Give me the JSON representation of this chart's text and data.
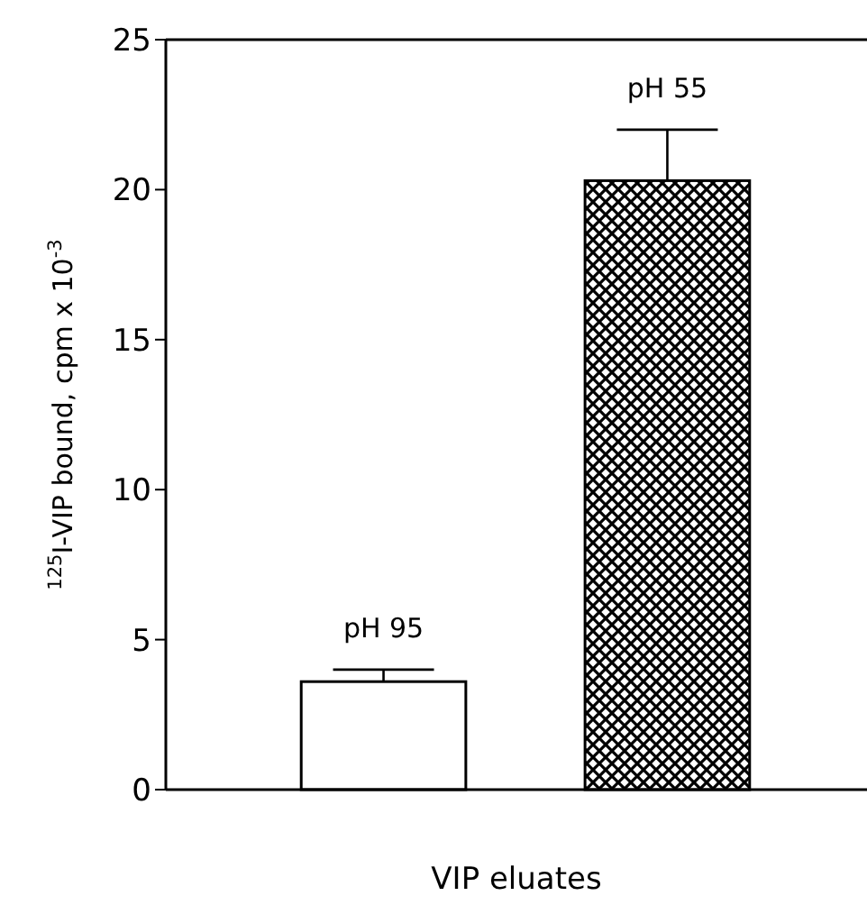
{
  "chart_data": {
    "type": "bar",
    "xlabel": "VIP eluates",
    "ylabel": "$^{125}$I-VIP bound, cpm x 10$^{-3}$",
    "categories": [
      null,
      null
    ],
    "values": [
      3.6,
      20.3
    ],
    "errors": [
      0.4,
      1.7
    ],
    "colors": [
      "#ffffff",
      "#000000"
    ],
    "annotations": [
      "pH 95",
      "pH 55"
    ],
    "ylim": [
      0,
      25
    ],
    "yticks": [
      0,
      5,
      10,
      15,
      20,
      25
    ]
  }
}
